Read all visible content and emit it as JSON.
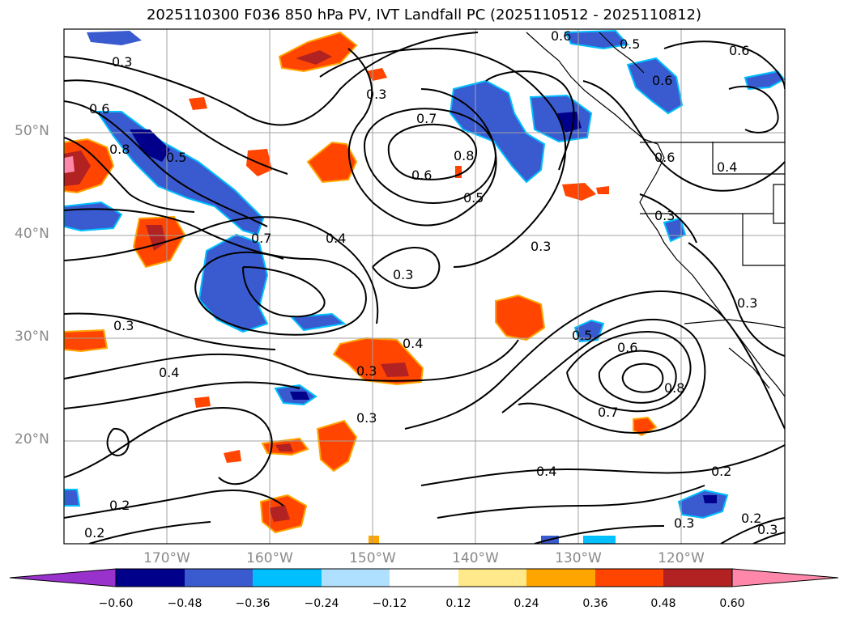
{
  "title": "2025110300 F036 850 hPa PV, IVT Landfall PC (2025110512 - 2025110812)",
  "lat_ticks": [
    "50°N",
    "40°N",
    "30°N",
    "20°N"
  ],
  "lon_ticks": [
    "170°W",
    "160°W",
    "150°W",
    "140°W",
    "130°W",
    "120°W"
  ],
  "colorbar": {
    "ticks": [
      "−0.60",
      "−0.48",
      "−0.36",
      "−0.24",
      "−0.12",
      "0.12",
      "0.24",
      "0.36",
      "0.48",
      "0.60"
    ],
    "colors": [
      "#9932cc",
      "#00008b",
      "#3a5bd0",
      "#00bfff",
      "#b0e0ff",
      "#ffffff",
      "#ffe98a",
      "#ffa500",
      "#ff4500",
      "#b22222",
      "#ff88aa"
    ]
  },
  "contour_labels": [
    "0.6",
    "0.5",
    "0.6",
    "0.3",
    "0.6",
    "0.6",
    "0.3",
    "0.7",
    "0.8",
    "0.6",
    "0.5",
    "0.8",
    "0.5",
    "0.6",
    "0.4",
    "0.3",
    "0.7",
    "0.4",
    "0.3",
    "0.3",
    "0.3",
    "0.4",
    "0.3",
    "0.4",
    "0.5",
    "0.6",
    "0.8",
    "0.7",
    "0.3",
    "0.3",
    "0.4",
    "0.2",
    "0.2",
    "0.2",
    "0.3",
    "0.2",
    "0.3"
  ],
  "colors": {
    "grid": "#a0a0a0",
    "contour": "#000000",
    "tick_label": "#8a8a8a"
  }
}
